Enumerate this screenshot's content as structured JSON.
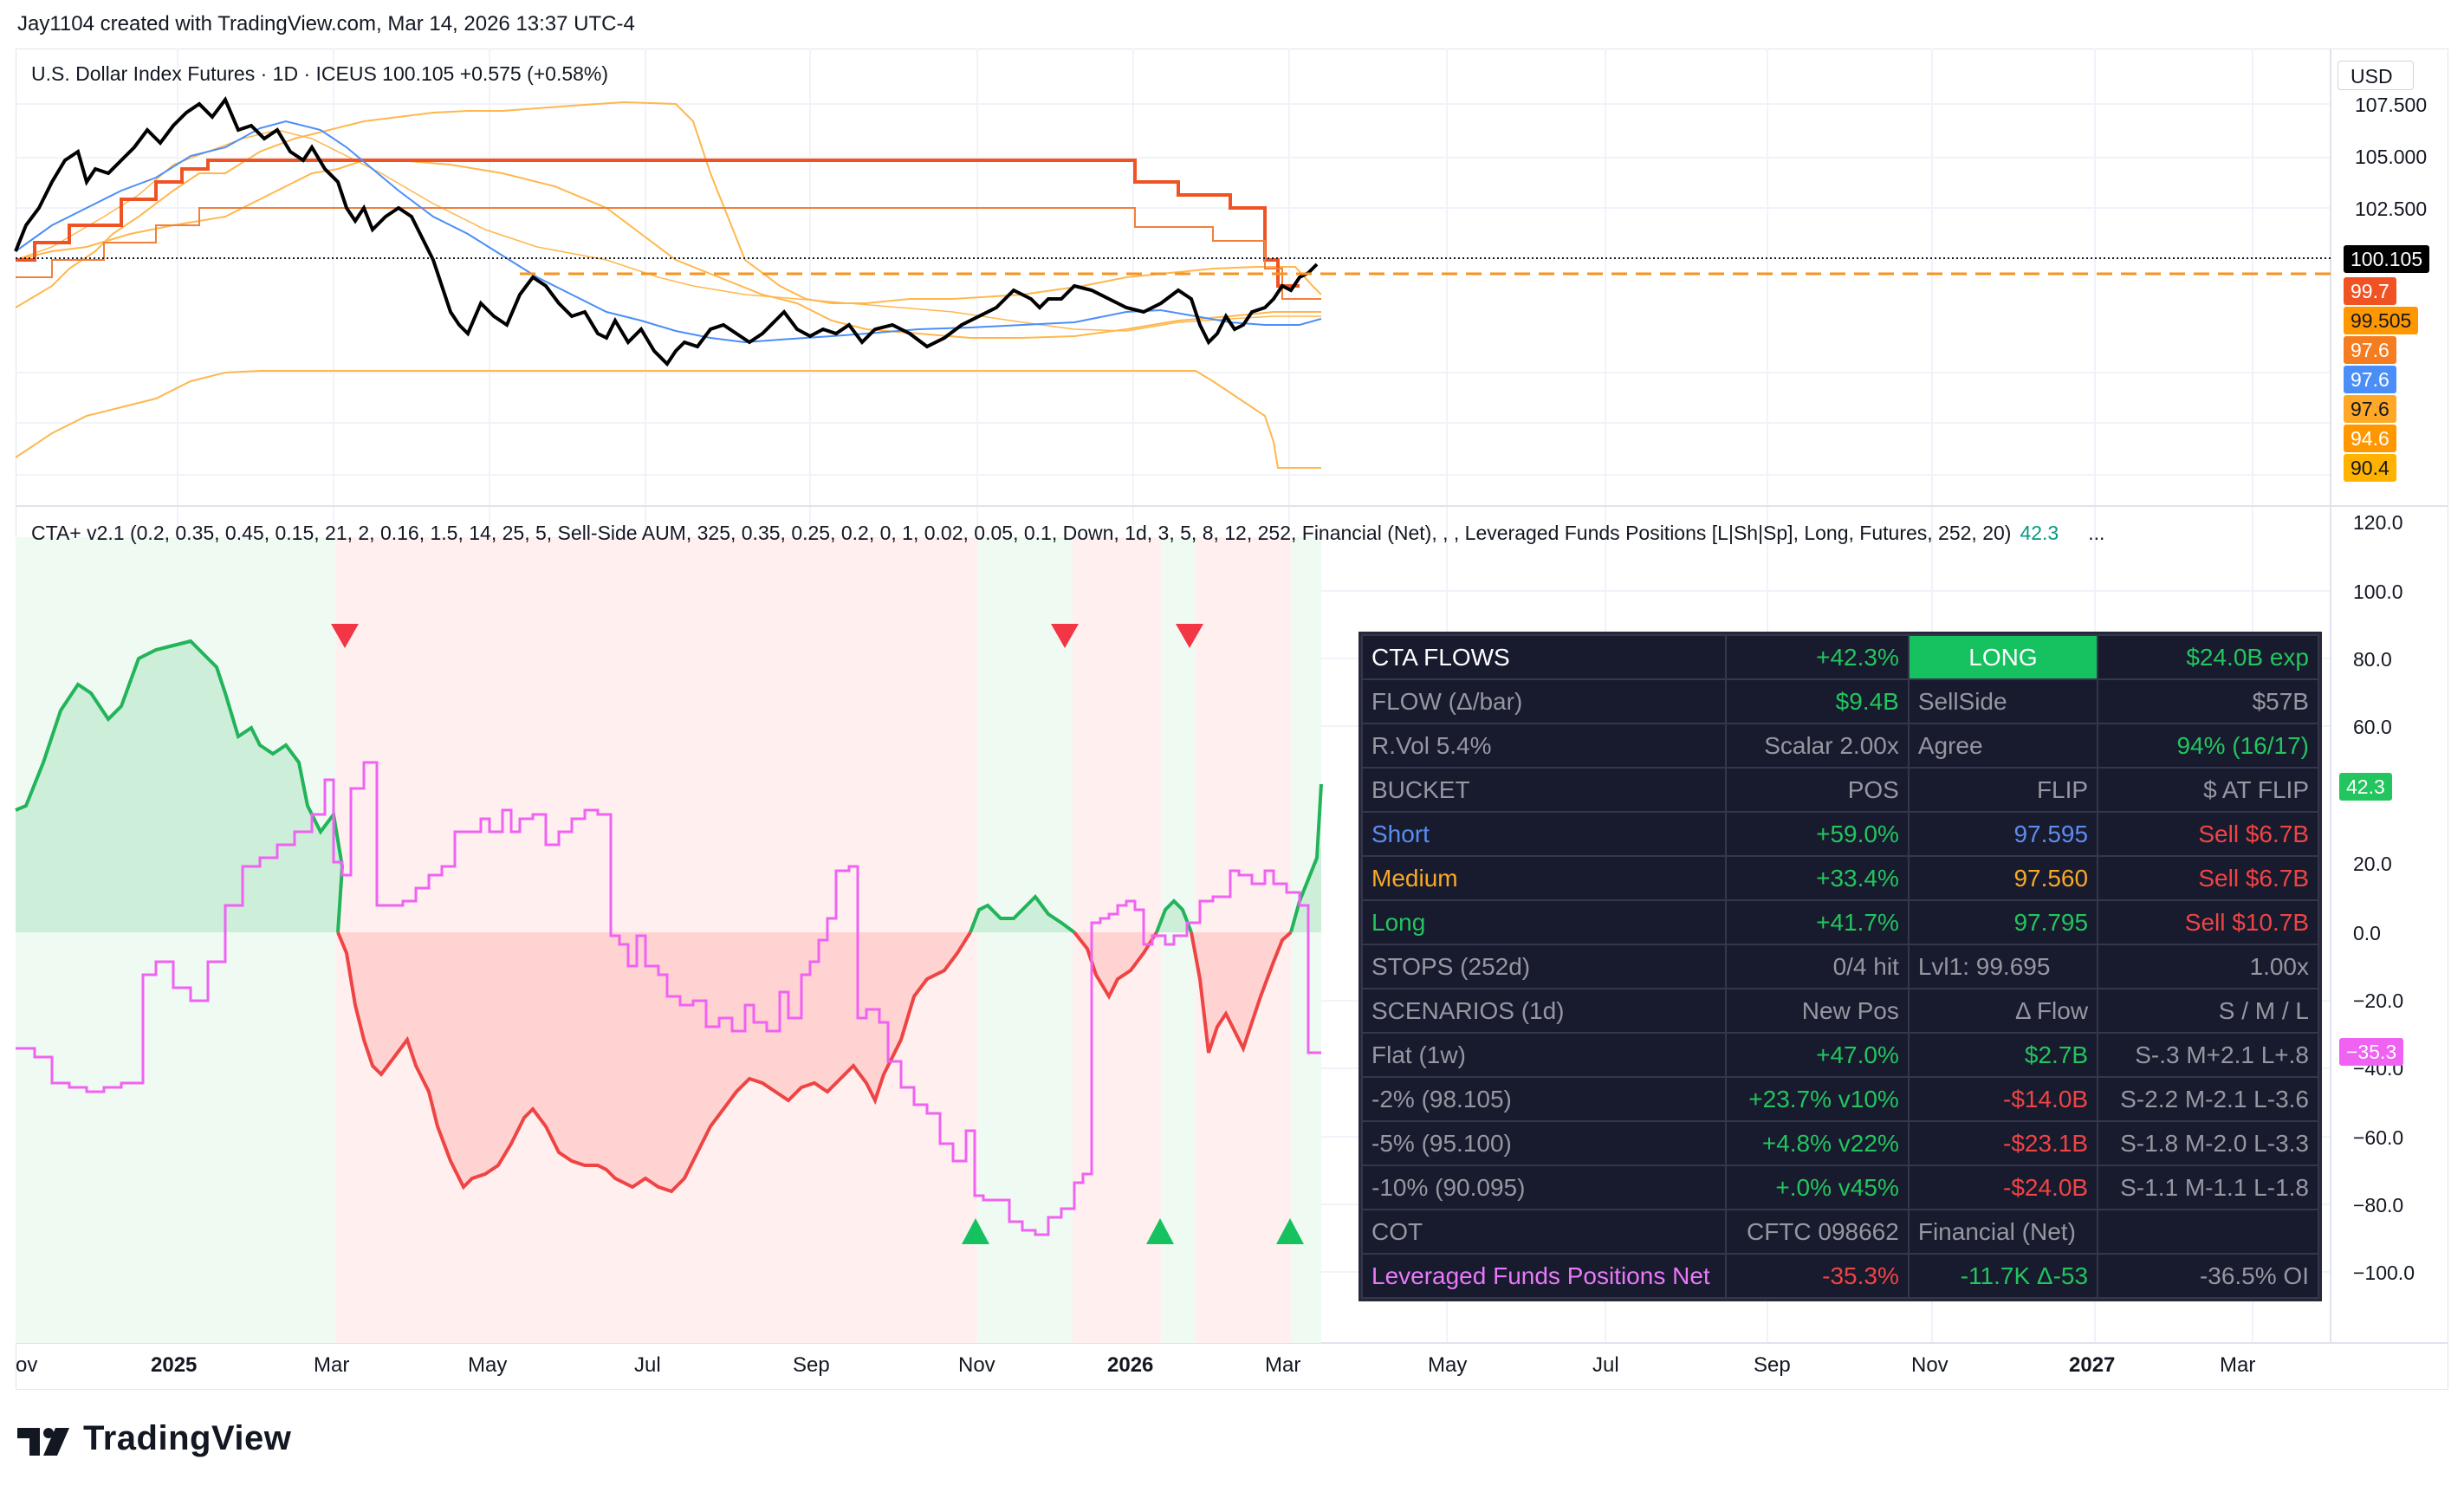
{
  "created_by": "Jay1104 created with TradingView.com, Mar 14, 2026 13:37 UTC-4",
  "price_pane": {
    "legend": "U.S. Dollar Index Futures · 1D · ICEUS  100.105  +0.575 (+0.58%)",
    "currency": "USD",
    "y_ticks": [
      "107.500",
      "105.000",
      "102.500"
    ],
    "price_tags": [
      {
        "label": "100.105",
        "bg": "#000000",
        "fg": "#ffffff"
      },
      {
        "label": "99.7",
        "bg": "#f05323",
        "fg": "#ffffff"
      },
      {
        "label": "99.505",
        "bg": "#ff9800",
        "fg": "#131722"
      },
      {
        "label": "97.6",
        "bg": "#f57c1f",
        "fg": "#ffffff"
      },
      {
        "label": "97.6",
        "bg": "#4c8ef7",
        "fg": "#ffffff"
      },
      {
        "label": "97.6",
        "bg": "#ffa726",
        "fg": "#131722"
      },
      {
        "label": "94.6",
        "bg": "#ff9800",
        "fg": "#ffffff"
      },
      {
        "label": "90.4",
        "bg": "#ffb300",
        "fg": "#131722"
      }
    ]
  },
  "cta_pane": {
    "legend": "CTA+ v2.1 (0.2, 0.35, 0.45, 0.15, 21, 2, 0.16, 1.5, 14, 25, 5, Sell-Side AUM, 325, 0.35, 0.25, 0.2, 0, 1, 0.02, 0.05, 0.1, Down, 1d, 3, 5, 8, 12, 252, Financial (Net), , , Leveraged Funds Positions [L|Sh|Sp], Long, Futures, 252, 20)",
    "legend_value": "42.3",
    "legend_more": "...",
    "y_ticks": [
      "120.0",
      "100.0",
      "80.0",
      "60.0",
      "20.0",
      "0.0",
      "−20.0",
      "−40.0",
      "−60.0",
      "−80.0",
      "−100.0"
    ],
    "value_tags": [
      {
        "label": "42.3",
        "bg": "#22c55e",
        "fg": "#ffffff"
      },
      {
        "label": "−35.3",
        "bg": "#f062f2",
        "fg": "#ffffff"
      }
    ]
  },
  "x_axis": {
    "ticks": [
      {
        "label": "ov",
        "bold": false
      },
      {
        "label": "2025",
        "bold": true
      },
      {
        "label": "Mar",
        "bold": false
      },
      {
        "label": "May",
        "bold": false
      },
      {
        "label": "Jul",
        "bold": false
      },
      {
        "label": "Sep",
        "bold": false
      },
      {
        "label": "Nov",
        "bold": false
      },
      {
        "label": "2026",
        "bold": true
      },
      {
        "label": "Mar",
        "bold": false
      },
      {
        "label": "May",
        "bold": false
      },
      {
        "label": "Jul",
        "bold": false
      },
      {
        "label": "Sep",
        "bold": false
      },
      {
        "label": "Nov",
        "bold": false
      },
      {
        "label": "2027",
        "bold": true
      },
      {
        "label": "Mar",
        "bold": false
      }
    ]
  },
  "table": {
    "rows": [
      [
        {
          "t": "CTA FLOWS",
          "c": "white",
          "a": "l"
        },
        {
          "t": "+42.3%",
          "c": "green",
          "a": "r"
        },
        {
          "t": "LONG",
          "c": "long",
          "a": "c"
        },
        {
          "t": "$24.0B exp",
          "c": "green",
          "a": "r"
        }
      ],
      [
        {
          "t": "FLOW (Δ/bar)",
          "c": "grey",
          "a": "l"
        },
        {
          "t": "$9.4B",
          "c": "green",
          "a": "r"
        },
        {
          "t": "SellSide",
          "c": "grey",
          "a": "l"
        },
        {
          "t": "$57B",
          "c": "grey",
          "a": "r"
        }
      ],
      [
        {
          "t": "R.Vol 5.4%",
          "c": "grey",
          "a": "l"
        },
        {
          "t": "Scalar 2.00x",
          "c": "grey",
          "a": "r"
        },
        {
          "t": "Agree",
          "c": "grey",
          "a": "l"
        },
        {
          "t": "94% (16/17)",
          "c": "green",
          "a": "r"
        }
      ],
      [
        {
          "t": "BUCKET",
          "c": "grey",
          "a": "l"
        },
        {
          "t": "POS",
          "c": "grey",
          "a": "r"
        },
        {
          "t": "FLIP",
          "c": "grey",
          "a": "r"
        },
        {
          "t": "$ AT FLIP",
          "c": "grey",
          "a": "r"
        }
      ],
      [
        {
          "t": "Short",
          "c": "blue",
          "a": "l"
        },
        {
          "t": "+59.0%",
          "c": "green",
          "a": "r"
        },
        {
          "t": "97.595",
          "c": "blue",
          "a": "r"
        },
        {
          "t": "Sell $6.7B",
          "c": "red",
          "a": "r"
        }
      ],
      [
        {
          "t": "Medium",
          "c": "orange",
          "a": "l"
        },
        {
          "t": "+33.4%",
          "c": "green",
          "a": "r"
        },
        {
          "t": "97.560",
          "c": "orange",
          "a": "r"
        },
        {
          "t": "Sell $6.7B",
          "c": "red",
          "a": "r"
        }
      ],
      [
        {
          "t": "Long",
          "c": "green",
          "a": "l"
        },
        {
          "t": "+41.7%",
          "c": "green",
          "a": "r"
        },
        {
          "t": "97.795",
          "c": "green",
          "a": "r"
        },
        {
          "t": "Sell $10.7B",
          "c": "red",
          "a": "r"
        }
      ],
      [
        {
          "t": "STOPS (252d)",
          "c": "grey",
          "a": "l"
        },
        {
          "t": "0/4 hit",
          "c": "grey",
          "a": "r"
        },
        {
          "t": "Lvl1: 99.695",
          "c": "grey",
          "a": "l"
        },
        {
          "t": "1.00x",
          "c": "grey",
          "a": "r"
        }
      ],
      [
        {
          "t": "SCENARIOS (1d)",
          "c": "grey",
          "a": "l"
        },
        {
          "t": "New Pos",
          "c": "grey",
          "a": "r"
        },
        {
          "t": "Δ Flow",
          "c": "grey",
          "a": "r"
        },
        {
          "t": "S / M / L",
          "c": "grey",
          "a": "r"
        }
      ],
      [
        {
          "t": "Flat (1w)",
          "c": "grey",
          "a": "l"
        },
        {
          "t": "+47.0%",
          "c": "green",
          "a": "r"
        },
        {
          "t": "$2.7B",
          "c": "green",
          "a": "r"
        },
        {
          "t": "S-.3 M+2.1 L+.8",
          "c": "grey",
          "a": "r"
        }
      ],
      [
        {
          "t": "-2% (98.105)",
          "c": "grey",
          "a": "l"
        },
        {
          "t": "+23.7% v10%",
          "c": "green",
          "a": "r"
        },
        {
          "t": "-$14.0B",
          "c": "red",
          "a": "r"
        },
        {
          "t": "S-2.2 M-2.1 L-3.6",
          "c": "grey",
          "a": "r"
        }
      ],
      [
        {
          "t": "-5% (95.100)",
          "c": "grey",
          "a": "l"
        },
        {
          "t": "+4.8% v22%",
          "c": "green",
          "a": "r"
        },
        {
          "t": "-$23.1B",
          "c": "red",
          "a": "r"
        },
        {
          "t": "S-1.8 M-2.0 L-3.3",
          "c": "grey",
          "a": "r"
        }
      ],
      [
        {
          "t": "-10% (90.095)",
          "c": "grey",
          "a": "l"
        },
        {
          "t": "+.0% v45%",
          "c": "green",
          "a": "r"
        },
        {
          "t": "-$24.0B",
          "c": "red",
          "a": "r"
        },
        {
          "t": "S-1.1 M-1.1 L-1.8",
          "c": "grey",
          "a": "r"
        }
      ],
      [
        {
          "t": "COT",
          "c": "grey",
          "a": "l"
        },
        {
          "t": "CFTC 098662",
          "c": "grey",
          "a": "r"
        },
        {
          "t": "Financial (Net)",
          "c": "grey",
          "a": "l"
        },
        {
          "t": "",
          "c": "grey",
          "a": "r"
        }
      ],
      [
        {
          "t": "Leveraged Funds Positions Net",
          "c": "pink",
          "a": "l"
        },
        {
          "t": "-35.3%",
          "c": "red",
          "a": "r"
        },
        {
          "t": "-11.7K Δ-53",
          "c": "green",
          "a": "r"
        },
        {
          "t": "-36.5% OI",
          "c": "grey",
          "a": "r"
        }
      ]
    ]
  },
  "brand": "TradingView"
}
